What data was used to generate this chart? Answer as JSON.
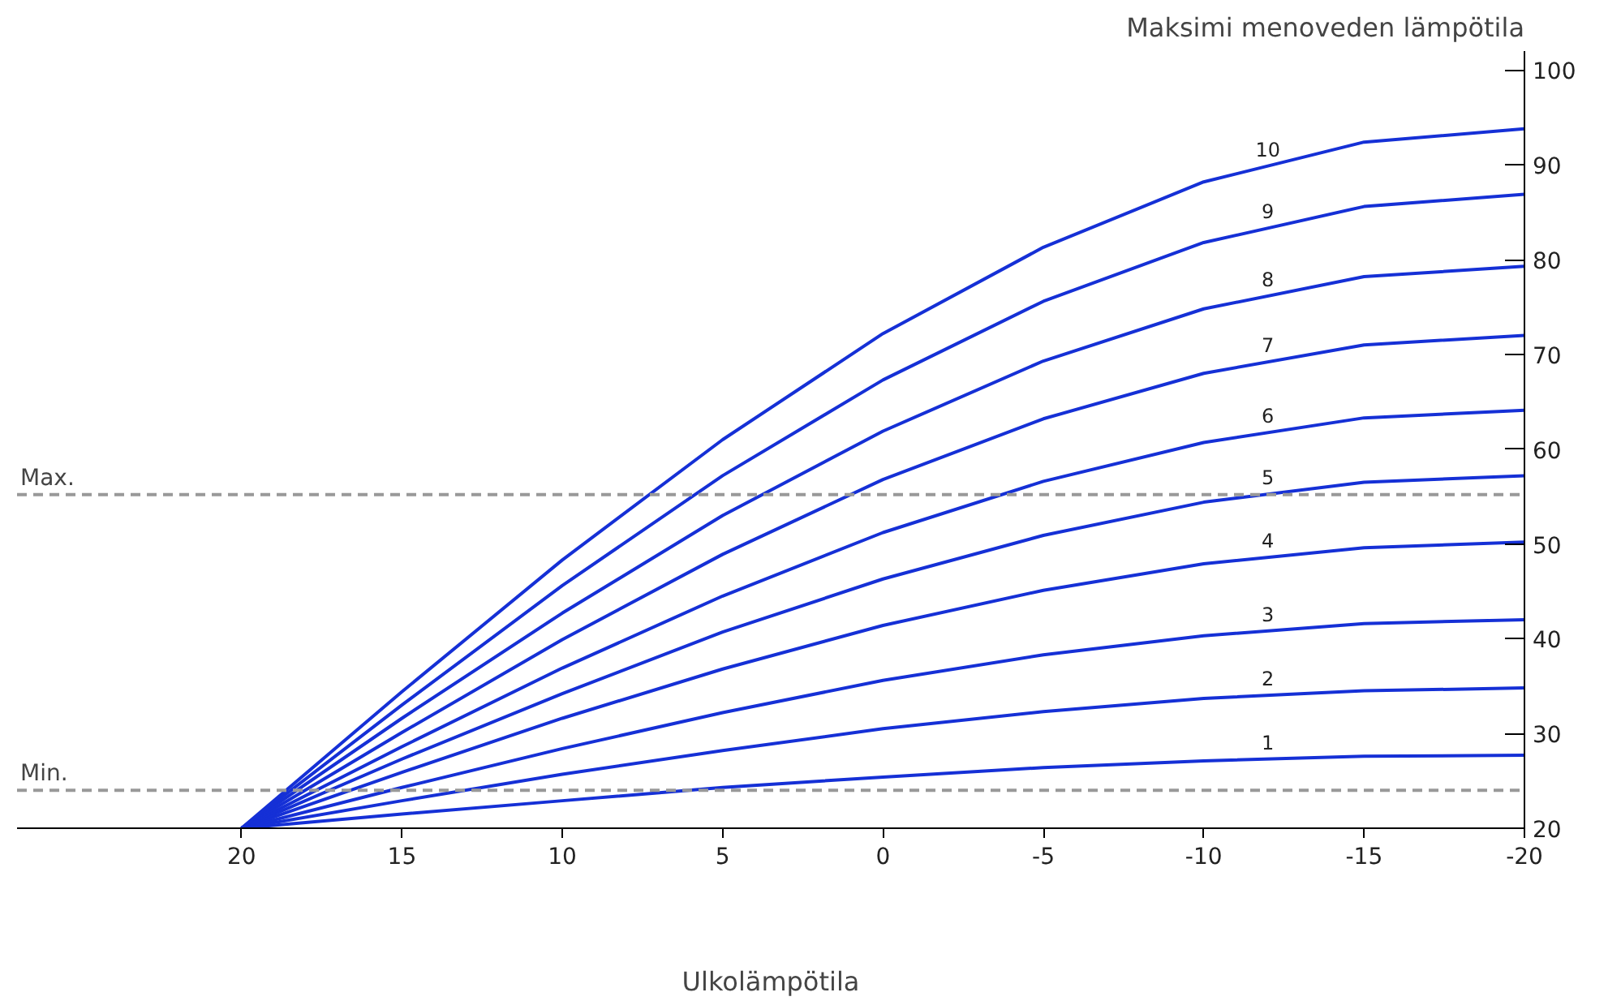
{
  "chart_data": {
    "type": "line",
    "xlabel": "Ulkolämpötila",
    "ylabel": "Maksimi menoveden lämpötila",
    "x": [
      20,
      15,
      10,
      5,
      0,
      -5,
      -10,
      -15,
      -20
    ],
    "xlim": [
      27,
      -20
    ],
    "ylim": [
      20,
      102
    ],
    "xticks": [
      20,
      15,
      10,
      5,
      0,
      -5,
      -10,
      -15,
      -20
    ],
    "yticks": [
      20,
      30,
      40,
      50,
      60,
      70,
      80,
      90,
      100
    ],
    "grid": false,
    "series": [
      {
        "name": "1",
        "color": "#1530d6",
        "values": [
          20,
          21.5,
          22.9,
          24.3,
          25.4,
          26.4,
          27.1,
          27.6,
          27.7
        ]
      },
      {
        "name": "2",
        "color": "#1530d6",
        "values": [
          20,
          22.9,
          25.7,
          28.2,
          30.5,
          32.3,
          33.7,
          34.5,
          34.8
        ]
      },
      {
        "name": "3",
        "color": "#1530d6",
        "values": [
          20,
          24.3,
          28.4,
          32.2,
          35.6,
          38.3,
          40.3,
          41.6,
          42
        ]
      },
      {
        "name": "4",
        "color": "#1530d6",
        "values": [
          20,
          25.9,
          31.6,
          36.8,
          41.4,
          45.1,
          47.9,
          49.6,
          50.2
        ]
      },
      {
        "name": "5",
        "color": "#1530d6",
        "values": [
          20,
          27.3,
          34.2,
          40.7,
          46.3,
          50.9,
          54.4,
          56.5,
          57.2
        ]
      },
      {
        "name": "6",
        "color": "#1530d6",
        "values": [
          20,
          28.6,
          36.9,
          44.5,
          51.2,
          56.6,
          60.7,
          63.3,
          64.1
        ]
      },
      {
        "name": "7",
        "color": "#1530d6",
        "values": [
          20,
          30.1,
          39.9,
          48.9,
          56.8,
          63.2,
          68,
          71,
          72
        ]
      },
      {
        "name": "8",
        "color": "#1530d6",
        "values": [
          20,
          31.6,
          42.7,
          53,
          61.9,
          69.3,
          74.8,
          78.2,
          79.3
        ]
      },
      {
        "name": "9",
        "color": "#1530d6",
        "values": [
          20,
          33,
          45.6,
          57.2,
          67.3,
          75.6,
          81.8,
          85.6,
          86.9
        ]
      },
      {
        "name": "10",
        "color": "#1530d6",
        "values": [
          20,
          34.4,
          48.3,
          61,
          72.2,
          81.3,
          88.2,
          92.4,
          93.8
        ]
      }
    ],
    "ref_lines": [
      {
        "axis": "y",
        "value": 55.2,
        "label": "Max.",
        "color": "#999999",
        "line_style": "dashed"
      },
      {
        "axis": "y",
        "value": 24,
        "label": "Min.",
        "color": "#999999",
        "line_style": "dashed"
      }
    ]
  }
}
